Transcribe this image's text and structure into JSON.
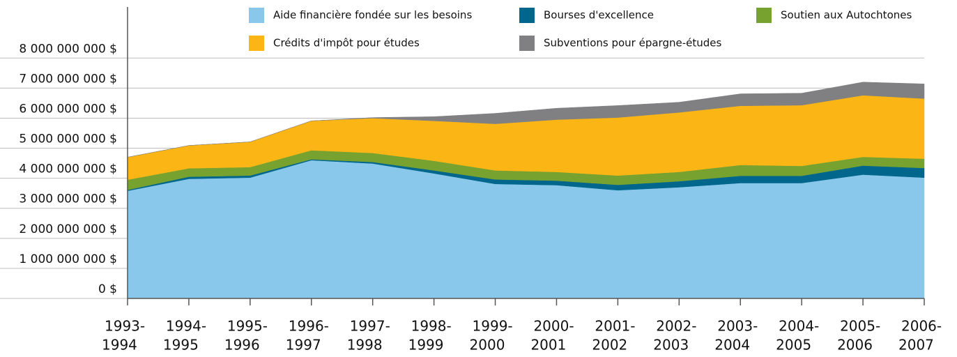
{
  "chart_data": {
    "type": "stacked-area",
    "categories": [
      [
        "1993-",
        "1994"
      ],
      [
        "1994-",
        "1995"
      ],
      [
        "1995-",
        "1996"
      ],
      [
        "1996-",
        "1997"
      ],
      [
        "1997-",
        "1998"
      ],
      [
        "1998-",
        "1999"
      ],
      [
        "1999-",
        "2000"
      ],
      [
        "2000-",
        "2001"
      ],
      [
        "2001-",
        "2002"
      ],
      [
        "2002-",
        "2003"
      ],
      [
        "2003-",
        "2004"
      ],
      [
        "2004-",
        "2005"
      ],
      [
        "2005-",
        "2006"
      ],
      [
        "2006-",
        "2007"
      ]
    ],
    "series": [
      {
        "name": "Aide financière fondée sur les besoins",
        "color": "#89c8ea",
        "values": [
          3580000000,
          3980000000,
          4020000000,
          4600000000,
          4490000000,
          4160000000,
          3810000000,
          3770000000,
          3600000000,
          3700000000,
          3840000000,
          3840000000,
          4120000000,
          4020000000
        ]
      },
      {
        "name": "Bourses d'excellence",
        "color": "#00668c",
        "values": [
          30000000,
          70000000,
          70000000,
          30000000,
          50000000,
          100000000,
          150000000,
          150000000,
          180000000,
          200000000,
          240000000,
          240000000,
          300000000,
          320000000
        ]
      },
      {
        "name": "Soutien aux Autochtones",
        "color": "#77a22f",
        "values": [
          340000000,
          280000000,
          280000000,
          300000000,
          300000000,
          320000000,
          300000000,
          290000000,
          310000000,
          310000000,
          360000000,
          330000000,
          290000000,
          310000000
        ]
      },
      {
        "name": "Crédits d'impôt pour études",
        "color": "#fbb616",
        "values": [
          750000000,
          760000000,
          840000000,
          980000000,
          1160000000,
          1330000000,
          1550000000,
          1740000000,
          1930000000,
          1980000000,
          1970000000,
          2020000000,
          2050000000,
          2000000000
        ]
      },
      {
        "name": "Subventions pour épargne-études",
        "color": "#808083",
        "values": [
          0,
          0,
          0,
          0,
          20000000,
          140000000,
          350000000,
          380000000,
          400000000,
          340000000,
          400000000,
          400000000,
          440000000,
          490000000
        ]
      }
    ],
    "ylim": [
      0,
      9700000000
    ],
    "yticks": [
      {
        "value": 0,
        "label": "0 $"
      },
      {
        "value": 1000000000,
        "label": "1 000 000 000 $"
      },
      {
        "value": 2000000000,
        "label": "2 000 000 000 $"
      },
      {
        "value": 3000000000,
        "label": "3 000 000 000 $"
      },
      {
        "value": 4000000000,
        "label": "4 000 000 000 $"
      },
      {
        "value": 5000000000,
        "label": "5 000 000 000 $"
      },
      {
        "value": 6000000000,
        "label": "6 000 000 000 $"
      },
      {
        "value": 7000000000,
        "label": "7 000 000 000 $"
      },
      {
        "value": 8000000000,
        "label": "8 000 000 000 $"
      }
    ],
    "grid": true
  }
}
